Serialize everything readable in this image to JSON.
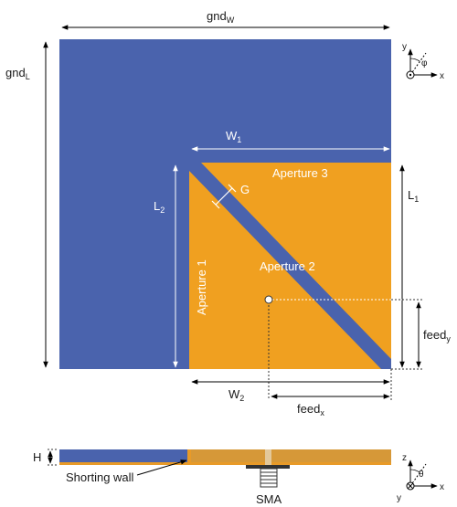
{
  "colors": {
    "ground": "#4a63ad",
    "patch": "#f0a020",
    "substrate": "#d69838",
    "dimension_line": "#000000",
    "dimension_line_on_patch": "#ffffff"
  },
  "dimensions": {
    "gnd_w": {
      "base": "gnd",
      "sub": "W"
    },
    "gnd_l": {
      "base": "gnd",
      "sub": "L"
    },
    "w1": {
      "base": "W",
      "sub": "1"
    },
    "l1": {
      "base": "L",
      "sub": "1"
    },
    "l2": {
      "base": "L",
      "sub": "2"
    },
    "w2": {
      "base": "W",
      "sub": "2"
    },
    "g": "G",
    "feed_x": {
      "base": "feed",
      "sub": "x"
    },
    "feed_y": {
      "base": "feed",
      "sub": "y"
    },
    "h": "H"
  },
  "labels": {
    "aperture1": "Aperture 1",
    "aperture2": "Aperture 2",
    "aperture3": "Aperture 3",
    "shorting_wall": "Shorting wall",
    "sma": "SMA"
  },
  "axes_top": {
    "y": "y",
    "x": "x",
    "phi": "φ"
  },
  "axes_side": {
    "z": "z",
    "x": "x",
    "y": "y",
    "theta": "θ"
  }
}
